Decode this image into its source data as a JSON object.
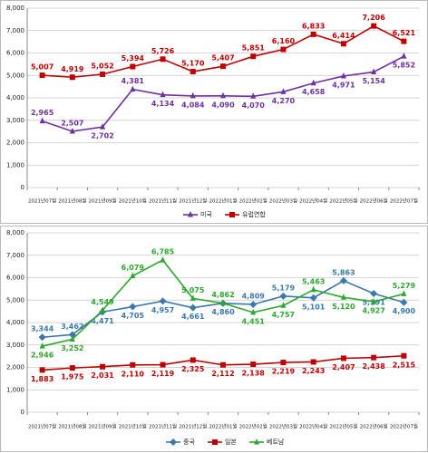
{
  "chart_data": [
    {
      "type": "line",
      "categories": [
        "2021년07월",
        "2021년08월",
        "2021년09월",
        "2021년10월",
        "2021년11월",
        "2021년12월",
        "2022년01월",
        "2022년02월",
        "2022년03월",
        "2022년04월",
        "2022년05월",
        "2022년06월",
        "2022년07월"
      ],
      "ylim": [
        0,
        8000
      ],
      "yticks": [
        0,
        {
          "value": 1000,
          "label": "1,000"
        },
        {
          "value": 2000,
          "label": "2,000"
        },
        {
          "value": 3000,
          "label": "3,000"
        },
        {
          "value": 4000,
          "label": "4,000"
        },
        {
          "value": 5000,
          "label": "5,000"
        },
        {
          "value": 6000,
          "label": "6,000"
        },
        {
          "value": 7000,
          "label": "7,000"
        },
        {
          "value": 8000,
          "label": "8,000"
        }
      ],
      "grid": true,
      "legend": "bottom",
      "series": [
        {
          "name": "미국",
          "color": "#7030a0",
          "marker": "triangle",
          "values": [
            2965,
            2507,
            2702,
            4381,
            4134,
            4084,
            4090,
            4070,
            4270,
            4658,
            4971,
            5154,
            5852
          ],
          "value_labels": [
            "2,965",
            "2,507",
            "2,702",
            "4,381",
            "4,134",
            "4,084",
            "4,090",
            "4,070",
            "4,270",
            "4,658",
            "4,971",
            "5,154",
            "5,852"
          ]
        },
        {
          "name": "유럽연합",
          "color": "#c00000",
          "marker": "square",
          "values": [
            5007,
            4919,
            5052,
            5394,
            5726,
            5170,
            5407,
            5851,
            6160,
            6833,
            6414,
            7206,
            6521
          ],
          "value_labels": [
            "5,007",
            "4,919",
            "5,052",
            "5,394",
            "5,726",
            "5,170",
            "5,407",
            "5,851",
            "6,160",
            "6,833",
            "6,414",
            "7,206",
            "6,521"
          ]
        }
      ]
    },
    {
      "type": "line",
      "categories": [
        "2021년07월",
        "2021년08월",
        "2021년09월",
        "2021년10월",
        "2021년11월",
        "2021년12월",
        "2022년01월",
        "2022년02월",
        "2022년03월",
        "2022년04월",
        "2022년05월",
        "2022년06월",
        "2022년07월"
      ],
      "ylim": [
        0,
        8000
      ],
      "yticks": [
        0,
        {
          "value": 1000,
          "label": "1,000"
        },
        {
          "value": 2000,
          "label": "2,000"
        },
        {
          "value": 3000,
          "label": "3,000"
        },
        {
          "value": 4000,
          "label": "4,000"
        },
        {
          "value": 5000,
          "label": "5,000"
        },
        {
          "value": 6000,
          "label": "6,000"
        },
        {
          "value": 7000,
          "label": "7,000"
        },
        {
          "value": 8000,
          "label": "8,000"
        }
      ],
      "grid": true,
      "legend": "bottom",
      "series": [
        {
          "name": "중국",
          "color": "#3a78b0",
          "marker": "diamond",
          "values": [
            3344,
            3462,
            4471,
            4705,
            4957,
            4661,
            4860,
            4809,
            5179,
            5101,
            5863,
            5291,
            4900
          ],
          "value_labels": [
            "3,344",
            "3,462",
            "4,471",
            "4,705",
            "4,957",
            "4,661",
            "4,860",
            "4,809",
            "5,179",
            "5,101",
            "5,863",
            "5,291",
            "4,900"
          ]
        },
        {
          "name": "일본",
          "color": "#c00000",
          "marker": "square",
          "values": [
            1883,
            1975,
            2031,
            2110,
            2119,
            2325,
            2112,
            2138,
            2219,
            2243,
            2407,
            2438,
            2515
          ],
          "value_labels": [
            "1,883",
            "1,975",
            "2,031",
            "2,110",
            "2,119",
            "2,325",
            "2,112",
            "2,138",
            "2,219",
            "2,243",
            "2,407",
            "2,438",
            "2,515"
          ]
        },
        {
          "name": "베트남",
          "color": "#2ca82c",
          "marker": "triangle",
          "values": [
            2946,
            3252,
            4549,
            6079,
            6785,
            5075,
            4862,
            4451,
            4757,
            5463,
            5120,
            4927,
            5279
          ],
          "value_labels": [
            "2,946",
            "3,252",
            "4,549",
            "6,079",
            "6,785",
            "5,075",
            "4,862",
            "4,451",
            "4,757",
            "5,463",
            "5,120",
            "4,927",
            "5,279"
          ]
        }
      ]
    }
  ]
}
